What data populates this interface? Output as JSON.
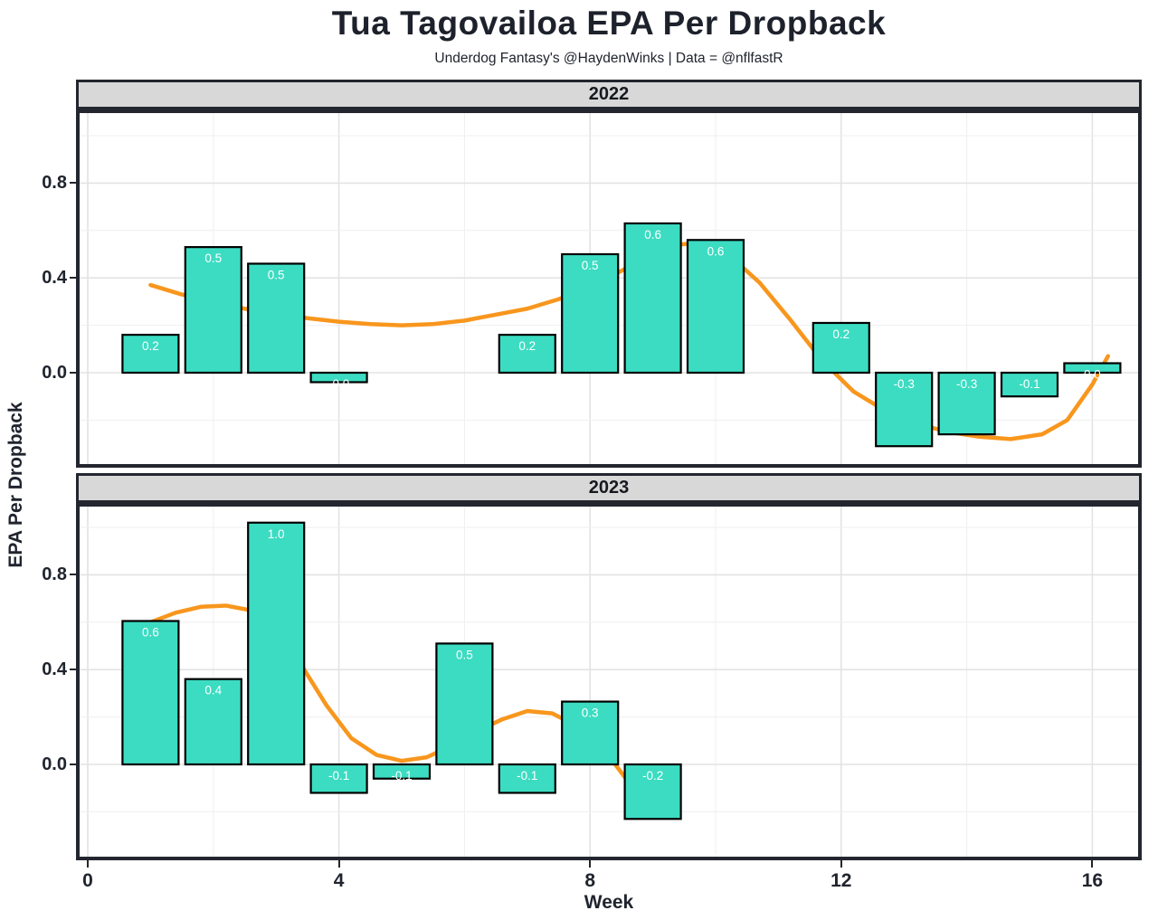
{
  "title": "Tua Tagovailoa EPA Per Dropback",
  "subtitle": "Underdog Fantasy's @HaydenWinks | Data = @nflfastR",
  "axis": {
    "x_label": "Week",
    "y_label": "EPA Per Dropback",
    "x_tick_labels": [
      "0",
      "4",
      "8",
      "12",
      "16"
    ],
    "x_tick_values": [
      0,
      4,
      8,
      12,
      16
    ],
    "y_tick_labels": [
      "0.8",
      "0.4",
      "0.0"
    ],
    "y_tick_values": [
      0.8,
      0.4,
      0.0
    ]
  },
  "colors": {
    "bar_fill": "#3CDCC2",
    "bar_outline": "#000000",
    "smooth_line": "#F8961D",
    "strip_bg": "#D8D8D8",
    "panel_border": "#23262E",
    "text": "#20242E",
    "bar_label_text": "#FFFFFF",
    "grid_major": "#E3E3E3",
    "grid_minor": "#EFEFEF"
  },
  "chart_data": [
    {
      "type": "bar",
      "facet_label": "2022",
      "xlabel": "Week",
      "ylabel": "EPA Per Dropback",
      "xlim": [
        -0.13,
        16.72
      ],
      "ylim": [
        -0.39,
        1.1
      ],
      "grid": true,
      "legend": "none",
      "categories": [
        1,
        2,
        3,
        4,
        7,
        8,
        9,
        10,
        12,
        13,
        14,
        15,
        16
      ],
      "values": [
        0.16,
        0.53,
        0.46,
        -0.04,
        0.16,
        0.5,
        0.63,
        0.56,
        0.21,
        -0.31,
        -0.26,
        -0.1,
        0.04
      ],
      "bar_labels": [
        "0.2",
        "0.5",
        "0.5",
        "-0.0",
        "0.2",
        "0.5",
        "0.6",
        "0.6",
        "0.2",
        "-0.3",
        "-0.3",
        "-0.1",
        "0.0"
      ],
      "smooth_line": {
        "x": [
          1.0,
          1.5,
          2.0,
          2.5,
          3.0,
          3.5,
          4.0,
          4.5,
          5.0,
          5.5,
          6.0,
          6.5,
          7.0,
          7.5,
          8.0,
          8.5,
          9.0,
          9.4,
          9.8,
          10.2,
          10.7,
          11.2,
          11.7,
          12.2,
          12.7,
          13.2,
          13.7,
          14.2,
          14.7,
          15.2,
          15.6,
          16.0,
          16.25
        ],
        "y": [
          0.37,
          0.33,
          0.3,
          0.27,
          0.25,
          0.23,
          0.215,
          0.205,
          0.2,
          0.205,
          0.22,
          0.245,
          0.27,
          0.31,
          0.36,
          0.43,
          0.5,
          0.54,
          0.55,
          0.5,
          0.38,
          0.22,
          0.05,
          -0.08,
          -0.16,
          -0.215,
          -0.25,
          -0.27,
          -0.28,
          -0.26,
          -0.2,
          -0.05,
          0.07
        ]
      }
    },
    {
      "type": "bar",
      "facet_label": "2023",
      "xlabel": "Week",
      "ylabel": "EPA Per Dropback",
      "xlim": [
        -0.13,
        16.72
      ],
      "ylim": [
        -0.39,
        1.1
      ],
      "grid": true,
      "legend": "none",
      "categories": [
        1,
        2,
        3,
        4,
        5,
        6,
        7,
        8,
        9
      ],
      "values": [
        0.605,
        0.36,
        1.02,
        -0.12,
        -0.06,
        0.51,
        -0.12,
        0.265,
        -0.23
      ],
      "bar_labels": [
        "0.6",
        "0.4",
        "1.0",
        "-0.1",
        "-0.1",
        "0.5",
        "-0.1",
        "0.3",
        "-0.2"
      ],
      "smooth_line": {
        "x": [
          1.0,
          1.4,
          1.8,
          2.2,
          2.6,
          3.0,
          3.4,
          3.8,
          4.2,
          4.6,
          5.0,
          5.4,
          5.8,
          6.2,
          6.6,
          7.0,
          7.4,
          7.8,
          8.2,
          8.6,
          9.0
        ],
        "y": [
          0.6,
          0.64,
          0.665,
          0.67,
          0.65,
          0.57,
          0.42,
          0.25,
          0.11,
          0.04,
          0.015,
          0.03,
          0.08,
          0.14,
          0.19,
          0.225,
          0.215,
          0.16,
          0.07,
          -0.07,
          -0.2
        ]
      }
    }
  ]
}
